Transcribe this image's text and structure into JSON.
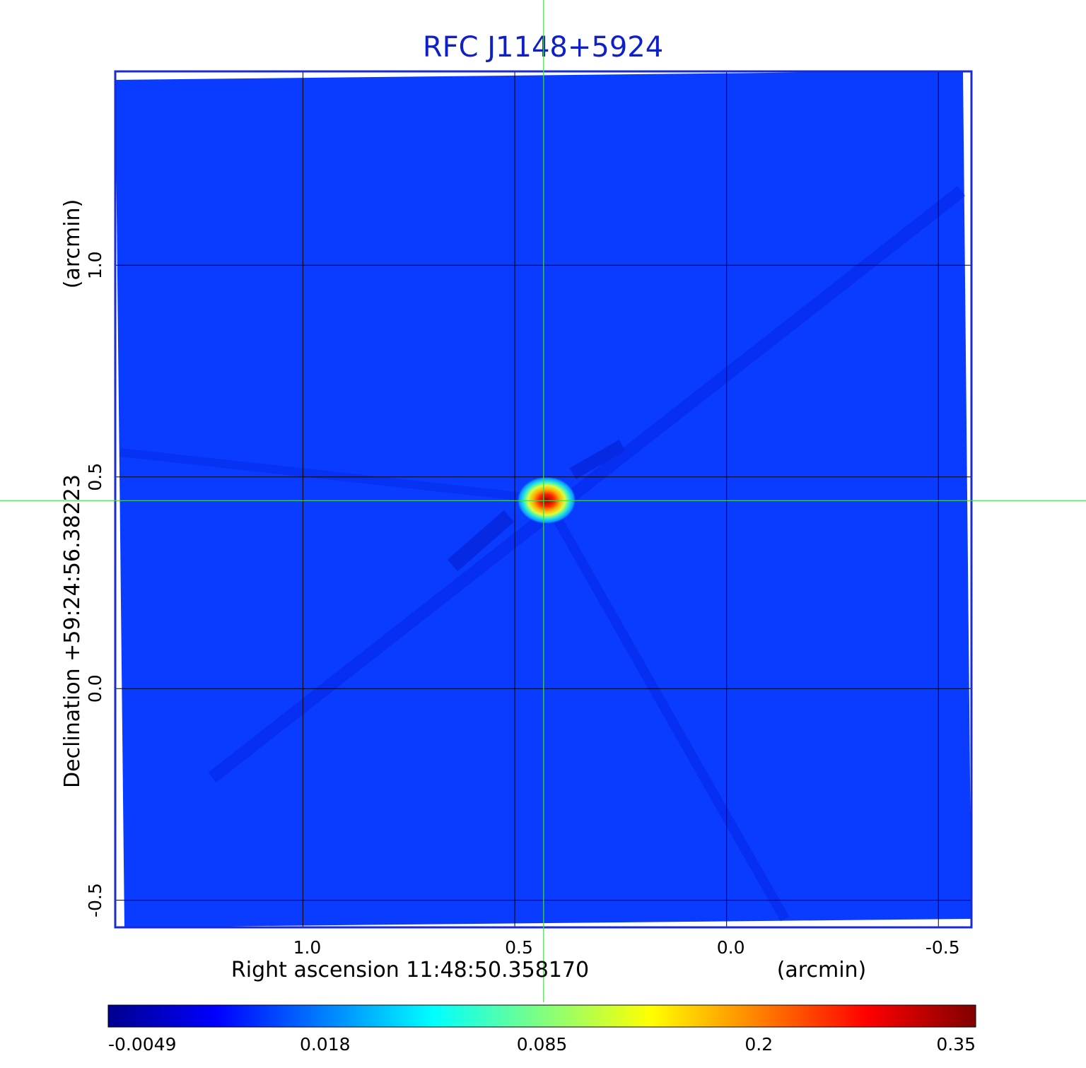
{
  "chart_data": {
    "type": "heatmap",
    "title": "RFC J1148+5924",
    "xlabel": "Right ascension  11:48:50.358170",
    "xlabel_unit": "(arcmin)",
    "ylabel": "Declination  +59:24:56.38223",
    "ylabel_unit": "(arcmin)",
    "x_ticks": [
      1.0,
      0.5,
      0.0,
      -0.5
    ],
    "x_tick_labels": [
      "1.0",
      "0.5",
      "0.0",
      "-0.5"
    ],
    "y_ticks": [
      1.0,
      0.5,
      0.0,
      -0.5
    ],
    "y_tick_labels": [
      "1.0",
      "0.5",
      "0.0",
      "-0.5"
    ],
    "xlim": [
      1.443,
      -0.578
    ],
    "ylim": [
      -0.564,
      1.458
    ],
    "grid": true,
    "crosshair": {
      "x": 0.432,
      "y": 0.444
    },
    "peak": {
      "x": 0.425,
      "y": 0.445,
      "value": 0.35
    },
    "colorbar": {
      "tick_values": [
        -0.0049,
        0.018,
        0.085,
        0.2,
        0.35
      ],
      "tick_labels": [
        "-0.0049",
        "0.018",
        "0.085",
        "0.2",
        "0.35"
      ],
      "colormap": "jet",
      "colors": [
        "#00008f",
        "#0000ff",
        "#0080ff",
        "#00ffff",
        "#80ff80",
        "#ffff00",
        "#ff8000",
        "#ff0000",
        "#800000"
      ]
    },
    "colors": {
      "background_field": "#0a3cff",
      "title": "#1020c8",
      "frame": "#1a2bd0",
      "crosshair": "#44dd44",
      "grid": "#000000"
    }
  }
}
